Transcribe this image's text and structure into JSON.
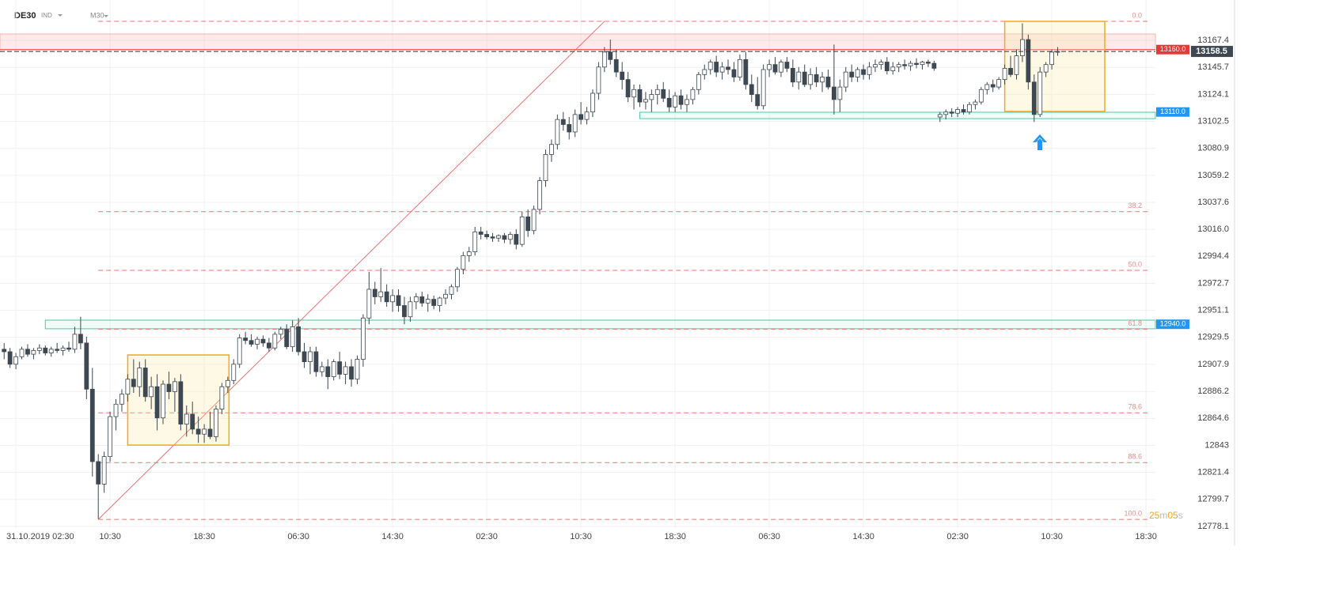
{
  "header": {
    "symbol": "DE30",
    "market": "IND",
    "interval": "M30"
  },
  "chart_data": {
    "type": "candlestick",
    "xlim": [
      -0.7,
      195.6
    ],
    "ylim": [
      12776.8,
      13199.7
    ],
    "grid": true,
    "xticks": [
      {
        "value": 2,
        "label": "31.10.2019 02:30"
      },
      {
        "value": 18,
        "label": "10:30"
      },
      {
        "value": 34,
        "label": "18:30"
      },
      {
        "value": 50,
        "label": "06:30"
      },
      {
        "value": 66,
        "label": "14:30"
      },
      {
        "value": 82,
        "label": "02:30"
      },
      {
        "value": 98,
        "label": "10:30"
      },
      {
        "value": 114,
        "label": "18:30"
      },
      {
        "value": 130,
        "label": "06:30"
      },
      {
        "value": 146,
        "label": "14:30"
      },
      {
        "value": 162,
        "label": "02:30"
      },
      {
        "value": 178,
        "label": "10:30"
      },
      {
        "value": 194,
        "label": "18:30"
      }
    ],
    "yticks": [
      13167.4,
      13145.7,
      13124.1,
      13102.5,
      13080.9,
      13059.2,
      13037.6,
      {
        "value": 13016,
        "label": "13016.0"
      },
      12994.4,
      12972.7,
      12951.1,
      12929.5,
      12907.9,
      12886.2,
      12864.6,
      12843,
      12821.4,
      12799.7,
      12778.1
    ],
    "candles": [
      [
        12920,
        12925,
        12912,
        12918
      ],
      [
        12918,
        12921,
        12905,
        12908
      ],
      [
        12908,
        12917,
        12904,
        12914
      ],
      [
        12914,
        12922,
        12912,
        12920
      ],
      [
        12920,
        12924,
        12914,
        12916
      ],
      [
        12916,
        12921,
        12912,
        12919
      ],
      [
        12919,
        12924,
        12916,
        12921
      ],
      [
        12921,
        12923,
        12915,
        12917
      ],
      [
        12917,
        12922,
        12914,
        12920
      ],
      [
        12920,
        12925,
        12917,
        12919
      ],
      [
        12919,
        12923,
        12915,
        12921
      ],
      [
        12921,
        12926,
        12918,
        12920
      ],
      [
        12920,
        12938,
        12917,
        12932
      ],
      [
        12932,
        12946,
        12920,
        12925
      ],
      [
        12925,
        12930,
        12880,
        12888
      ],
      [
        12888,
        12905,
        12818,
        12830
      ],
      [
        12830,
        12836,
        12784,
        12812
      ],
      [
        12812,
        12838,
        12805,
        12834
      ],
      [
        12834,
        12870,
        12830,
        12866
      ],
      [
        12866,
        12880,
        12855,
        12876
      ],
      [
        12876,
        12888,
        12870,
        12884
      ],
      [
        12884,
        12900,
        12878,
        12896
      ],
      [
        12896,
        12912,
        12885,
        12890
      ],
      [
        12890,
        12910,
        12882,
        12905
      ],
      [
        12905,
        12912,
        12878,
        12882
      ],
      [
        12882,
        12898,
        12872,
        12890
      ],
      [
        12890,
        12900,
        12855,
        12865
      ],
      [
        12865,
        12895,
        12860,
        12892
      ],
      [
        12892,
        12902,
        12880,
        12886
      ],
      [
        12886,
        12897,
        12870,
        12894
      ],
      [
        12894,
        12900,
        12855,
        12860
      ],
      [
        12860,
        12875,
        12850,
        12868
      ],
      [
        12868,
        12878,
        12852,
        12856
      ],
      [
        12856,
        12866,
        12845,
        12852
      ],
      [
        12852,
        12860,
        12845,
        12856
      ],
      [
        12856,
        12870,
        12848,
        12850
      ],
      [
        12850,
        12875,
        12846,
        12872
      ],
      [
        12872,
        12893,
        12868,
        12890
      ],
      [
        12890,
        12898,
        12885,
        12895
      ],
      [
        12895,
        12912,
        12892,
        12908
      ],
      [
        12908,
        12932,
        12905,
        12929
      ],
      [
        12929,
        12934,
        12924,
        12927
      ],
      [
        12927,
        12932,
        12922,
        12924
      ],
      [
        12924,
        12930,
        12920,
        12928
      ],
      [
        12928,
        12931,
        12922,
        12925
      ],
      [
        12925,
        12929,
        12918,
        12921
      ],
      [
        12921,
        12934,
        12919,
        12932
      ],
      [
        12932,
        12938,
        12928,
        12936
      ],
      [
        12936,
        12940,
        12920,
        12922
      ],
      [
        12922,
        12943,
        12918,
        12938
      ],
      [
        12938,
        12945,
        12915,
        12918
      ],
      [
        12918,
        12925,
        12905,
        12910
      ],
      [
        12910,
        12922,
        12900,
        12918
      ],
      [
        12918,
        12922,
        12898,
        12902
      ],
      [
        12902,
        12910,
        12898,
        12906
      ],
      [
        12906,
        12912,
        12888,
        12898
      ],
      [
        12898,
        12912,
        12895,
        12910
      ],
      [
        12910,
        12918,
        12896,
        12900
      ],
      [
        12900,
        12910,
        12892,
        12906
      ],
      [
        12906,
        12912,
        12890,
        12896
      ],
      [
        12896,
        12915,
        12892,
        12912
      ],
      [
        12912,
        12948,
        12906,
        12945
      ],
      [
        12945,
        12982,
        12940,
        12968
      ],
      [
        12968,
        12974,
        12956,
        12962
      ],
      [
        12962,
        12985,
        12958,
        12966
      ],
      [
        12966,
        12972,
        12954,
        12958
      ],
      [
        12958,
        12968,
        12950,
        12963
      ],
      [
        12963,
        12968,
        12950,
        12955
      ],
      [
        12955,
        12962,
        12940,
        12946
      ],
      [
        12946,
        12962,
        12942,
        12958
      ],
      [
        12958,
        12965,
        12952,
        12962
      ],
      [
        12962,
        12966,
        12954,
        12957
      ],
      [
        12957,
        12964,
        12950,
        12960
      ],
      [
        12960,
        12963,
        12952,
        12955
      ],
      [
        12955,
        12962,
        12950,
        12961
      ],
      [
        12961,
        12968,
        12956,
        12964
      ],
      [
        12964,
        12972,
        12960,
        12970
      ],
      [
        12970,
        12986,
        12966,
        12984
      ],
      [
        12984,
        12998,
        12980,
        12995
      ],
      [
        12995,
        13002,
        12990,
        12998
      ],
      [
        12998,
        13018,
        12995,
        13014
      ],
      [
        13014,
        13018,
        13008,
        13012
      ],
      [
        13012,
        13015,
        13008,
        13010
      ],
      [
        13010,
        13013,
        13006,
        13009
      ],
      [
        13009,
        13012,
        13006,
        13011
      ],
      [
        13011,
        13013,
        13005,
        13008
      ],
      [
        13008,
        13014,
        13004,
        13012
      ],
      [
        13012,
        13016,
        13000,
        13004
      ],
      [
        13004,
        13030,
        13002,
        13026
      ],
      [
        13026,
        13032,
        13010,
        13015
      ],
      [
        13015,
        13035,
        13012,
        13032
      ],
      [
        13032,
        13058,
        13028,
        13055
      ],
      [
        13055,
        13080,
        13050,
        13076
      ],
      [
        13076,
        13088,
        13070,
        13084
      ],
      [
        13084,
        13108,
        13080,
        13104
      ],
      [
        13104,
        13110,
        13095,
        13100
      ],
      [
        13100,
        13106,
        13088,
        13094
      ],
      [
        13094,
        13112,
        13090,
        13108
      ],
      [
        13108,
        13118,
        13100,
        13104
      ],
      [
        13104,
        13114,
        13100,
        13110
      ],
      [
        13110,
        13128,
        13106,
        13125
      ],
      [
        13125,
        13150,
        13120,
        13146
      ],
      [
        13146,
        13162,
        13142,
        13158
      ],
      [
        13158,
        13168,
        13148,
        13152
      ],
      [
        13152,
        13160,
        13138,
        13142
      ],
      [
        13142,
        13150,
        13128,
        13136
      ],
      [
        13136,
        13142,
        13118,
        13122
      ],
      [
        13122,
        13132,
        13112,
        13128
      ],
      [
        13128,
        13132,
        13114,
        13118
      ],
      [
        13118,
        13126,
        13112,
        13120
      ],
      [
        13120,
        13128,
        13110,
        13124
      ],
      [
        13124,
        13132,
        13116,
        13128
      ],
      [
        13128,
        13134,
        13118,
        13121
      ],
      [
        13121,
        13128,
        13110,
        13114
      ],
      [
        13114,
        13126,
        13110,
        13123
      ],
      [
        13123,
        13128,
        13112,
        13116
      ],
      [
        13116,
        13124,
        13110,
        13120
      ],
      [
        13120,
        13130,
        13116,
        13128
      ],
      [
        13128,
        13142,
        13124,
        13140
      ],
      [
        13140,
        13148,
        13136,
        13144
      ],
      [
        13144,
        13152,
        13140,
        13150
      ],
      [
        13150,
        13155,
        13138,
        13142
      ],
      [
        13142,
        13150,
        13136,
        13146
      ],
      [
        13146,
        13152,
        13140,
        13144
      ],
      [
        13144,
        13150,
        13134,
        13138
      ],
      [
        13138,
        13156,
        13135,
        13152
      ],
      [
        13152,
        13158,
        13128,
        13132
      ],
      [
        13132,
        13140,
        13118,
        13124
      ],
      [
        13124,
        13138,
        13112,
        13115
      ],
      [
        13115,
        13148,
        13112,
        13144
      ],
      [
        13144,
        13152,
        13138,
        13148
      ],
      [
        13148,
        13154,
        13140,
        13142
      ],
      [
        13142,
        13152,
        13138,
        13150
      ],
      [
        13150,
        13154,
        13142,
        13145
      ],
      [
        13145,
        13152,
        13130,
        13134
      ],
      [
        13134,
        13146,
        13128,
        13142
      ],
      [
        13142,
        13148,
        13130,
        13132
      ],
      [
        13132,
        13145,
        13128,
        13140
      ],
      [
        13140,
        13146,
        13130,
        13134
      ],
      [
        13134,
        13142,
        13126,
        13138
      ],
      [
        13138,
        13144,
        13128,
        13130
      ],
      [
        13130,
        13164,
        13108,
        13120
      ],
      [
        13120,
        13136,
        13110,
        13130
      ],
      [
        13130,
        13146,
        13126,
        13142
      ],
      [
        13142,
        13148,
        13134,
        13138
      ],
      [
        13138,
        13146,
        13134,
        13144
      ],
      [
        13144,
        13148,
        13136,
        13140
      ],
      [
        13140,
        13150,
        13136,
        13146
      ],
      [
        13146,
        13152,
        13142,
        13148
      ],
      [
        13148,
        13152,
        13144,
        13150
      ],
      [
        13150,
        13154,
        13140,
        13143
      ],
      [
        13143,
        13150,
        13140,
        13146
      ],
      [
        13146,
        13150,
        13142,
        13148
      ],
      [
        13148,
        13152,
        13144,
        13147
      ],
      [
        13147,
        13151,
        13143,
        13149
      ],
      [
        13149,
        13153,
        13145,
        13148
      ],
      [
        13148,
        13151,
        13144,
        13150
      ],
      [
        13150,
        13152,
        13146,
        13149
      ],
      [
        13149,
        13151,
        13143,
        13145
      ],
      [
        13106,
        13110,
        13102,
        13108
      ],
      [
        13108,
        13112,
        13104,
        13110
      ],
      [
        13110,
        13113,
        13106,
        13109
      ],
      [
        13109,
        13114,
        13106,
        13112
      ],
      [
        13112,
        13116,
        13108,
        13110
      ],
      [
        13110,
        13118,
        13108,
        13116
      ],
      [
        13116,
        13120,
        13112,
        13118
      ],
      [
        13118,
        13130,
        13116,
        13128
      ],
      [
        13128,
        13134,
        13124,
        13132
      ],
      [
        13132,
        13136,
        13126,
        13130
      ],
      [
        13130,
        13138,
        13128,
        13136
      ],
      [
        13136,
        13148,
        13132,
        13145
      ],
      [
        13145,
        13155,
        13138,
        13140
      ],
      [
        13140,
        13160,
        13136,
        13155
      ],
      [
        13155,
        13181,
        13150,
        13168
      ],
      [
        13168,
        13172,
        13128,
        13134
      ],
      [
        13134,
        13140,
        13102,
        13108
      ],
      [
        13108,
        13146,
        13106,
        13142
      ],
      [
        13142,
        13150,
        13138,
        13148
      ],
      [
        13148,
        13160,
        13144,
        13158
      ],
      [
        13158,
        13162,
        13155,
        13158.5
      ]
    ],
    "fib": {
      "start": {
        "x": 16,
        "price": 12783.7
      },
      "end": {
        "x": 102,
        "price": 13182.6
      },
      "levels": [
        {
          "value": 0,
          "label": "0.0"
        },
        38.2,
        {
          "value": 50,
          "label": "50.0"
        },
        61.8,
        78.6,
        88.6,
        {
          "value": 100,
          "label": "100.0"
        }
      ]
    },
    "resistance_zone": {
      "low": 13159.8,
      "high": 13172.5,
      "label": {
        "value": 13160,
        "label": "13160.0"
      }
    },
    "support_zones": [
      {
        "x0": 108,
        "low": 13104.7,
        "high": 13109.8,
        "label": {
          "value": 13110,
          "label": "13110.0"
        }
      },
      {
        "x0": 7,
        "low": 12936.4,
        "high": 12943.3,
        "label": {
          "value": 12940,
          "label": "12940.0"
        }
      }
    ],
    "boxes": [
      {
        "x0": 21,
        "x1": 38.2,
        "low": 12843.2,
        "high": 12915.4
      },
      {
        "x0": 170,
        "x1": 187,
        "low": 13110.4,
        "high": 13182.6
      }
    ],
    "current_price": 13158.5,
    "timer": [
      "25",
      "m",
      "05",
      "s"
    ]
  }
}
